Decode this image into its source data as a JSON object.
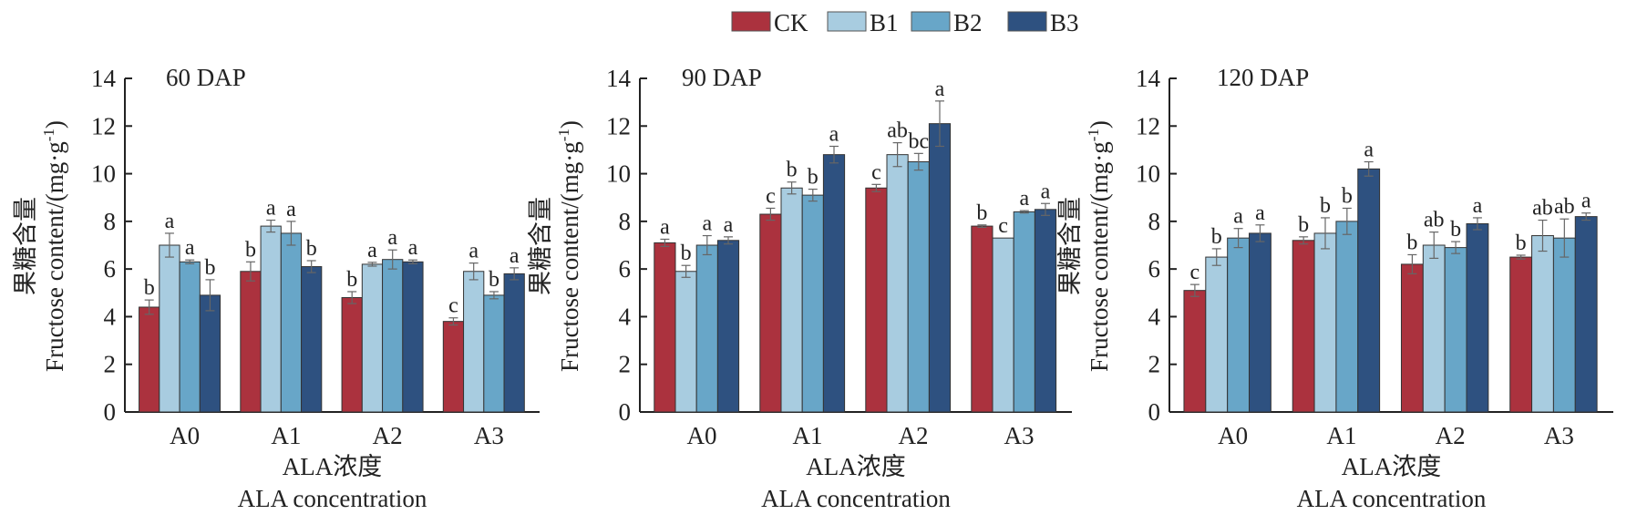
{
  "legend": {
    "items": [
      {
        "label": "CK",
        "color": "#ab323e"
      },
      {
        "label": "B1",
        "color": "#a8cce0"
      },
      {
        "label": "B2",
        "color": "#68a6c8"
      },
      {
        "label": "B3",
        "color": "#2e5180"
      }
    ]
  },
  "chart_data": [
    {
      "type": "bar",
      "title": "60 DAP",
      "categories": [
        "A0",
        "A1",
        "A2",
        "A3"
      ],
      "xlabel_cn": "ALA浓度",
      "xlabel": "ALA concentration",
      "ylabel_cn": "果糖含量",
      "ylabel": "Fructose content/(mg·g",
      "ylabel_sup": "-1",
      "ylabel_end": ")",
      "ylim": [
        0,
        14
      ],
      "yticks": [
        0,
        2,
        4,
        6,
        8,
        10,
        12,
        14
      ],
      "series": [
        {
          "name": "CK",
          "values": [
            4.4,
            5.9,
            4.8,
            3.8
          ],
          "errors": [
            0.3,
            0.4,
            0.25,
            0.15
          ],
          "letters": [
            "b",
            "b",
            "b",
            "c"
          ]
        },
        {
          "name": "B1",
          "values": [
            7.0,
            7.8,
            6.2,
            5.9
          ],
          "errors": [
            0.5,
            0.25,
            0.08,
            0.35
          ],
          "letters": [
            "a",
            "a",
            "a",
            "a"
          ]
        },
        {
          "name": "B2",
          "values": [
            6.3,
            7.5,
            6.4,
            4.9
          ],
          "errors": [
            0.08,
            0.5,
            0.4,
            0.15
          ],
          "letters": [
            "a",
            "a",
            "a",
            "b"
          ]
        },
        {
          "name": "B3",
          "values": [
            4.9,
            6.1,
            6.3,
            5.8
          ],
          "errors": [
            0.65,
            0.25,
            0.08,
            0.25
          ],
          "letters": [
            "b",
            "b",
            "a",
            "a"
          ]
        }
      ]
    },
    {
      "type": "bar",
      "title": "90 DAP",
      "categories": [
        "A0",
        "A1",
        "A2",
        "A3"
      ],
      "xlabel_cn": "ALA浓度",
      "xlabel": "ALA concentration",
      "ylabel_cn": "果糖含量",
      "ylabel": "Fructose content/(mg·g",
      "ylabel_sup": "-1",
      "ylabel_end": ")",
      "ylim": [
        0,
        14
      ],
      "yticks": [
        0,
        2,
        4,
        6,
        8,
        10,
        12,
        14
      ],
      "series": [
        {
          "name": "CK",
          "values": [
            7.1,
            8.3,
            9.4,
            7.8
          ],
          "errors": [
            0.15,
            0.25,
            0.15,
            0.05
          ],
          "letters": [
            "a",
            "c",
            "c",
            "b"
          ]
        },
        {
          "name": "B1",
          "values": [
            5.9,
            9.4,
            10.8,
            7.3
          ],
          "errors": [
            0.25,
            0.25,
            0.5,
            0.0
          ],
          "letters": [
            "b",
            "b",
            "ab",
            "c"
          ]
        },
        {
          "name": "B2",
          "values": [
            7.0,
            9.1,
            10.5,
            8.4
          ],
          "errors": [
            0.4,
            0.25,
            0.35,
            0.05
          ],
          "letters": [
            "a",
            "b",
            "bc",
            "a"
          ]
        },
        {
          "name": "B3",
          "values": [
            7.2,
            10.8,
            12.1,
            8.5
          ],
          "errors": [
            0.15,
            0.35,
            0.95,
            0.25
          ],
          "letters": [
            "a",
            "a",
            "a",
            "a"
          ]
        }
      ]
    },
    {
      "type": "bar",
      "title": "120 DAP",
      "categories": [
        "A0",
        "A1",
        "A2",
        "A3"
      ],
      "xlabel_cn": "ALA浓度",
      "xlabel": "ALA concentration",
      "ylabel_cn": "果糖含量",
      "ylabel": "Fructose content/(mg·g",
      "ylabel_sup": "-1",
      "ylabel_end": ")",
      "ylim": [
        0,
        14
      ],
      "yticks": [
        0,
        2,
        4,
        6,
        8,
        10,
        12,
        14
      ],
      "series": [
        {
          "name": "CK",
          "values": [
            5.1,
            7.2,
            6.2,
            6.5
          ],
          "errors": [
            0.25,
            0.15,
            0.4,
            0.08
          ],
          "letters": [
            "c",
            "b",
            "b",
            "b"
          ]
        },
        {
          "name": "B1",
          "values": [
            6.5,
            7.5,
            7.0,
            7.4
          ],
          "errors": [
            0.35,
            0.65,
            0.55,
            0.65
          ],
          "letters": [
            "b",
            "b",
            "ab",
            "ab"
          ]
        },
        {
          "name": "B2",
          "values": [
            7.3,
            8.0,
            6.9,
            7.3
          ],
          "errors": [
            0.4,
            0.55,
            0.25,
            0.8
          ],
          "letters": [
            "a",
            "b",
            "b",
            "ab"
          ]
        },
        {
          "name": "B3",
          "values": [
            7.5,
            10.2,
            7.9,
            8.2
          ],
          "errors": [
            0.35,
            0.3,
            0.25,
            0.15
          ],
          "letters": [
            "a",
            "a",
            "a",
            "a"
          ]
        }
      ]
    }
  ]
}
